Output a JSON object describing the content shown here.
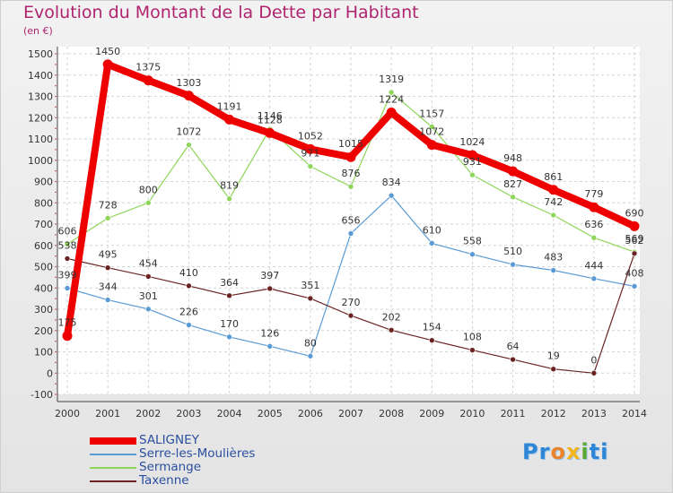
{
  "chart_data": {
    "type": "line",
    "title": "Evolution du Montant de la Dette par Habitant",
    "ylabel": "(en €)",
    "xlabel": "",
    "x": [
      "2000",
      "2001",
      "2002",
      "2003",
      "2004",
      "2005",
      "2006",
      "2007",
      "2008",
      "2009",
      "2010",
      "2011",
      "2012",
      "2013",
      "2014"
    ],
    "ylim": [
      -100,
      1500
    ],
    "yticks": [
      "-100",
      "0",
      "100",
      "200",
      "300",
      "400",
      "500",
      "600",
      "700",
      "800",
      "900",
      "1000",
      "1100",
      "1200",
      "1300",
      "1400",
      "1500"
    ],
    "grid": true,
    "legend_position": "bottom-left",
    "series": [
      {
        "name": "SALIGNEY",
        "color": "#ee0000",
        "values": [
          175,
          1450,
          1375,
          1303,
          1191,
          1128,
          1052,
          1015,
          1224,
          1072,
          1024,
          948,
          861,
          779,
          690
        ]
      },
      {
        "name": "Serre-les-Moulières",
        "color": "#5b9bd5",
        "values": [
          399,
          344,
          301,
          226,
          170,
          126,
          80,
          656,
          834,
          610,
          558,
          510,
          483,
          444,
          408
        ]
      },
      {
        "name": "Sermange",
        "color": "#8ed65a",
        "values": [
          606,
          728,
          800,
          1072,
          819,
          1146,
          971,
          876,
          1319,
          1157,
          931,
          827,
          742,
          636,
          569
        ]
      },
      {
        "name": "Taxenne",
        "color": "#6b2222",
        "values": [
          538,
          495,
          454,
          410,
          364,
          397,
          351,
          270,
          202,
          154,
          108,
          64,
          19,
          0,
          562
        ]
      }
    ]
  },
  "logo_parts": [
    "Pr",
    "o",
    "x",
    "i",
    "ti"
  ]
}
